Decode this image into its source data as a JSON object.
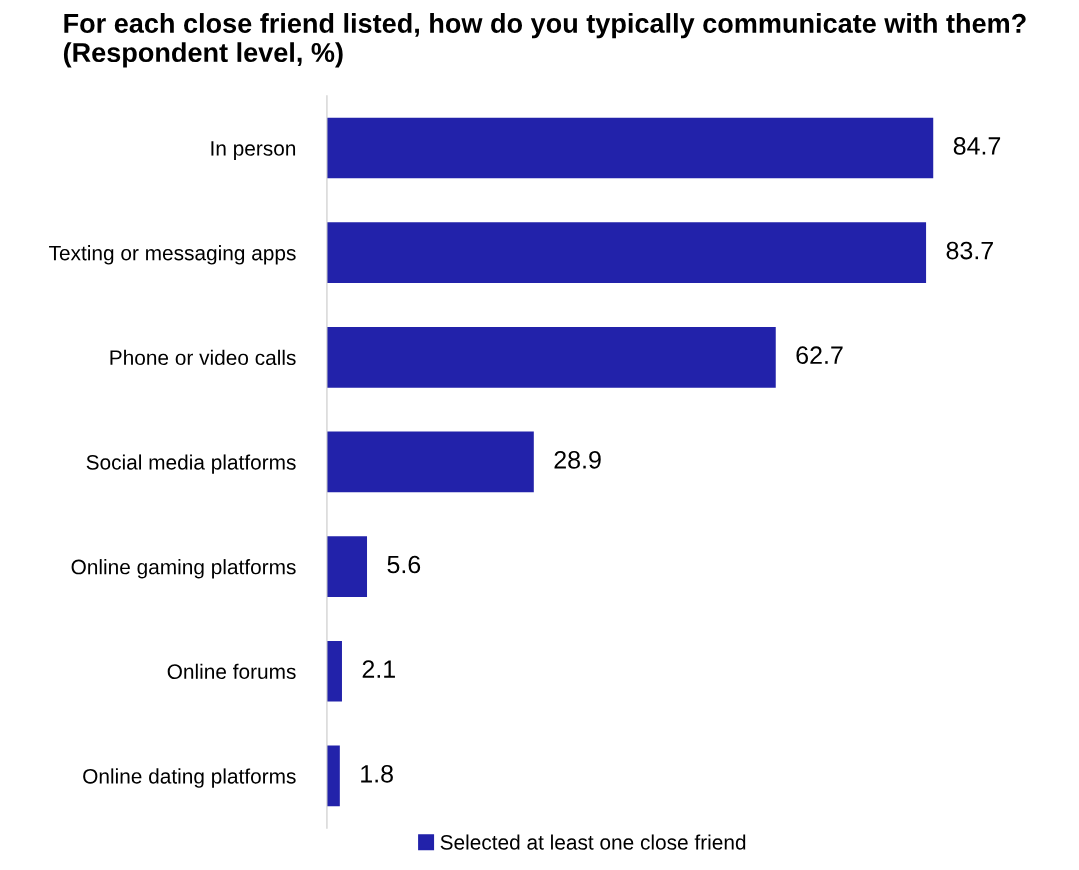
{
  "chart_data": {
    "type": "bar",
    "orientation": "horizontal",
    "title": "For each close friend listed, how do you typically communicate with them? (Respondent level, %)",
    "categories": [
      "In person",
      "Texting or messaging apps",
      "Phone or video calls",
      "Social media platforms",
      "Online gaming platforms",
      "Online forums",
      "Online dating platforms"
    ],
    "series": [
      {
        "name": "Selected at least one close friend",
        "color": "#2222aa",
        "values": [
          84.7,
          83.7,
          62.7,
          28.9,
          5.6,
          2.1,
          1.8
        ]
      }
    ],
    "data_labels": true,
    "legend": "bottom",
    "grid": false
  }
}
